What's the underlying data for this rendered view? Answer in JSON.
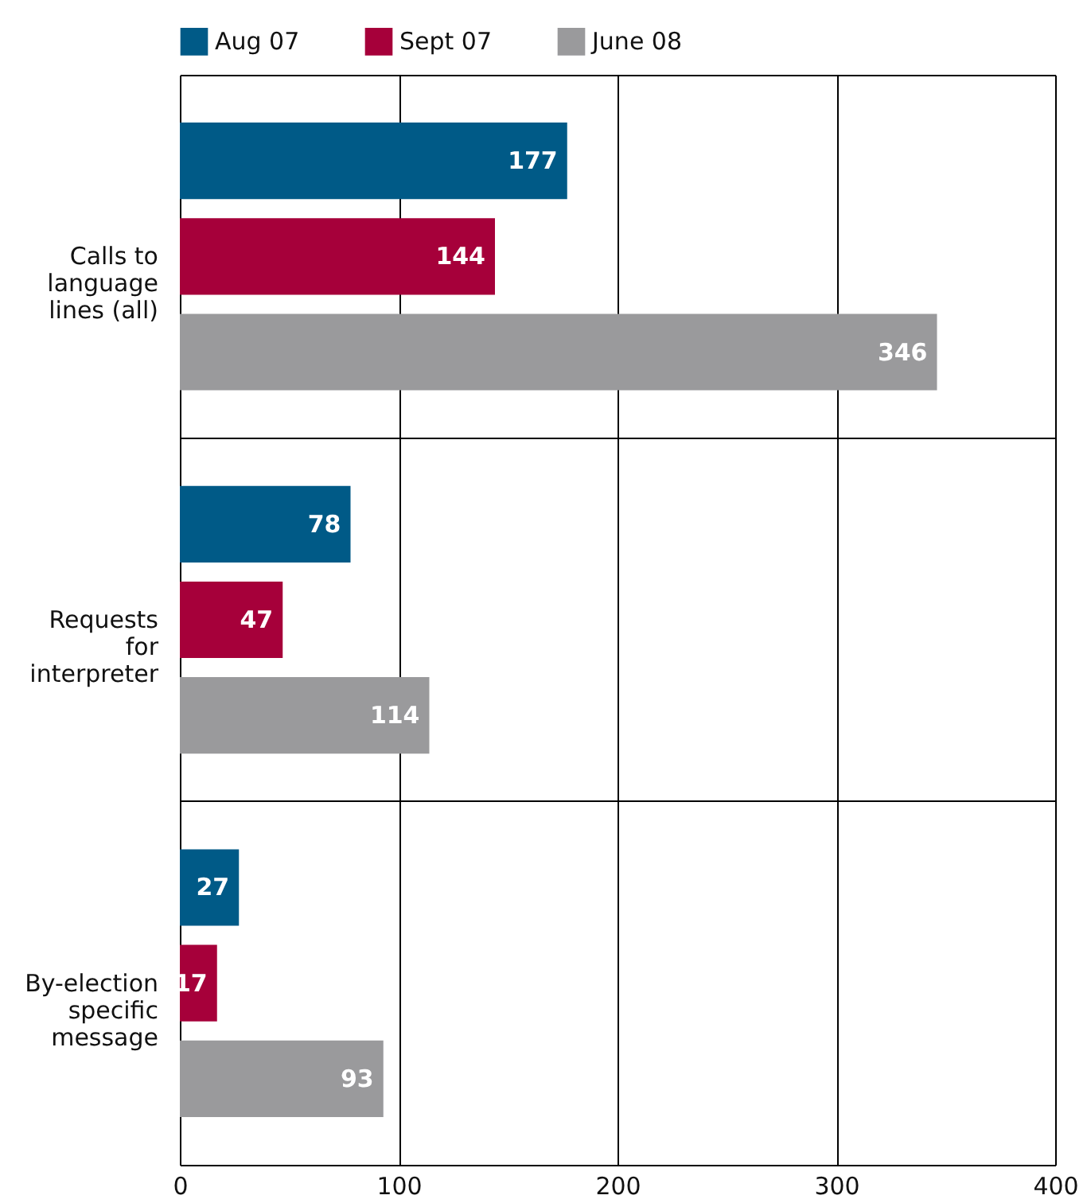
{
  "chart_data": {
    "type": "bar",
    "orientation": "horizontal",
    "categories": [
      "Calls to language lines (all)",
      "Requests for interpreter",
      "By-election specific message"
    ],
    "series": [
      {
        "name": "Aug 07",
        "color": "#005a87",
        "values": [
          177,
          78,
          27
        ]
      },
      {
        "name": "Sept 07",
        "color": "#a6003a",
        "values": [
          144,
          47,
          17
        ]
      },
      {
        "name": "June 08",
        "color": "#9a9a9c",
        "values": [
          346,
          114,
          93
        ]
      }
    ],
    "xlim": [
      0,
      400
    ],
    "xticks": [
      0,
      100,
      200,
      300,
      400
    ],
    "grid": true,
    "legend": "top",
    "data_labels": true
  }
}
